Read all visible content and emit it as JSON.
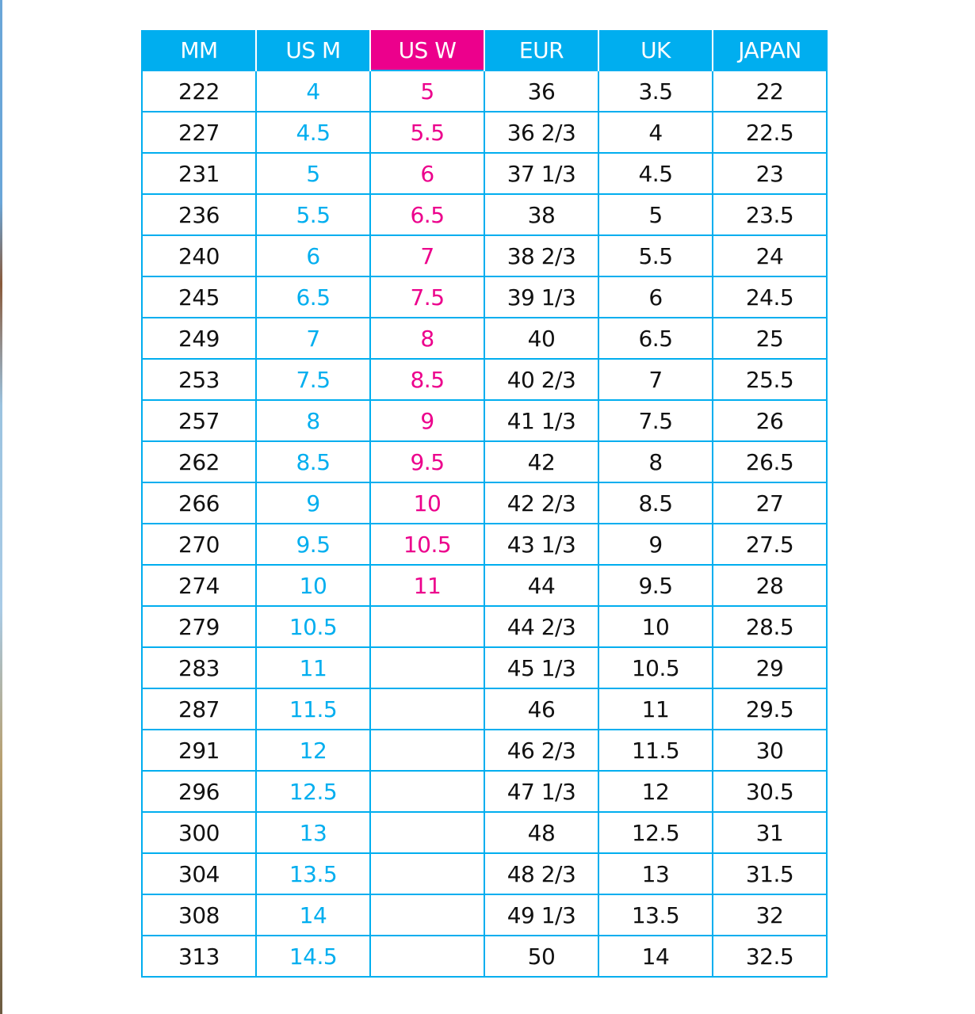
{
  "colors": {
    "accent_blue": "#00aeef",
    "accent_pink": "#ec008c"
  },
  "headers": [
    "MM",
    "US M",
    "US W",
    "EUR",
    "UK",
    "JAPAN"
  ],
  "rows": [
    [
      "222",
      "4",
      "5",
      "36",
      "3.5",
      "22"
    ],
    [
      "227",
      "4.5",
      "5.5",
      "36 2/3",
      "4",
      "22.5"
    ],
    [
      "231",
      "5",
      "6",
      "37 1/3",
      "4.5",
      "23"
    ],
    [
      "236",
      "5.5",
      "6.5",
      "38",
      "5",
      "23.5"
    ],
    [
      "240",
      "6",
      "7",
      "38 2/3",
      "5.5",
      "24"
    ],
    [
      "245",
      "6.5",
      "7.5",
      "39 1/3",
      "6",
      "24.5"
    ],
    [
      "249",
      "7",
      "8",
      "40",
      "6.5",
      "25"
    ],
    [
      "253",
      "7.5",
      "8.5",
      "40 2/3",
      "7",
      "25.5"
    ],
    [
      "257",
      "8",
      "9",
      "41 1/3",
      "7.5",
      "26"
    ],
    [
      "262",
      "8.5",
      "9.5",
      "42",
      "8",
      "26.5"
    ],
    [
      "266",
      "9",
      "10",
      "42 2/3",
      "8.5",
      "27"
    ],
    [
      "270",
      "9.5",
      "10.5",
      "43 1/3",
      "9",
      "27.5"
    ],
    [
      "274",
      "10",
      "11",
      "44",
      "9.5",
      "28"
    ],
    [
      "279",
      "10.5",
      "",
      "44 2/3",
      "10",
      "28.5"
    ],
    [
      "283",
      "11",
      "",
      "45 1/3",
      "10.5",
      "29"
    ],
    [
      "287",
      "11.5",
      "",
      "46",
      "11",
      "29.5"
    ],
    [
      "291",
      "12",
      "",
      "46 2/3",
      "11.5",
      "30"
    ],
    [
      "296",
      "12.5",
      "",
      "47 1/3",
      "12",
      "30.5"
    ],
    [
      "300",
      "13",
      "",
      "48",
      "12.5",
      "31"
    ],
    [
      "304",
      "13.5",
      "",
      "48 2/3",
      "13",
      "31.5"
    ],
    [
      "308",
      "14",
      "",
      "49 1/3",
      "13.5",
      "32"
    ],
    [
      "313",
      "14.5",
      "",
      "50",
      "14",
      "32.5"
    ]
  ]
}
